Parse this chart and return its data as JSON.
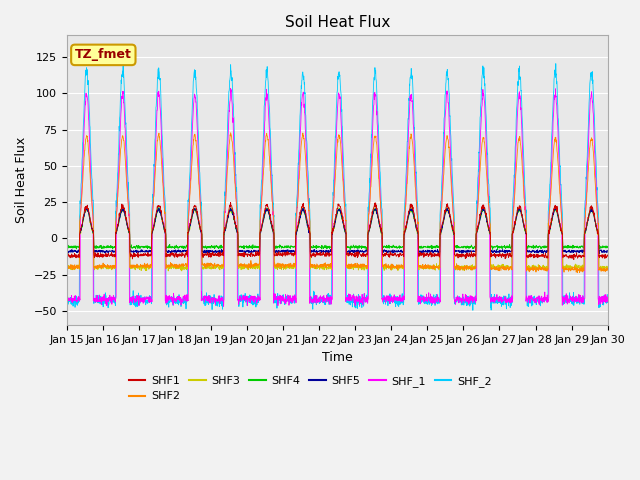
{
  "title": "Soil Heat Flux",
  "xlabel": "Time",
  "ylabel": "Soil Heat Flux",
  "ylim": [
    -60,
    140
  ],
  "xtick_labels": [
    "Jan 15",
    "Jan 16",
    "Jan 17",
    "Jan 18",
    "Jan 19",
    "Jan 20",
    "Jan 21",
    "Jan 22",
    "Jan 23",
    "Jan 24",
    "Jan 25",
    "Jan 26",
    "Jan 27",
    "Jan 28",
    "Jan 29",
    "Jan 30"
  ],
  "series": [
    {
      "name": "SHF1",
      "color": "#cc0000"
    },
    {
      "name": "SHF2",
      "color": "#ff8800"
    },
    {
      "name": "SHF3",
      "color": "#cccc00"
    },
    {
      "name": "SHF4",
      "color": "#00cc00"
    },
    {
      "name": "SHF5",
      "color": "#000099"
    },
    {
      "name": "SHF_1",
      "color": "#ff00ff"
    },
    {
      "name": "SHF_2",
      "color": "#00ccff"
    }
  ],
  "annotation_text": "TZ_fmet",
  "annotation_color": "#990000",
  "annotation_bg": "#ffff99",
  "annotation_border": "#cc9900",
  "plot_bg": "#e8e8e8",
  "fig_bg": "#f2f2f2",
  "n_days": 15,
  "pts_per_day": 144,
  "seed": 42,
  "shf1_day": 22,
  "shf1_night": -12,
  "shf2_day": 70,
  "shf2_night": -20,
  "shf3_day": 20,
  "shf3_night": -20,
  "shf4_day": 20,
  "shf4_night": -6,
  "shf5_day": 20,
  "shf5_night": -9,
  "shf_1_day": 100,
  "shf_1_night": -42,
  "shf_2_day": 115,
  "shf_2_night": -43
}
